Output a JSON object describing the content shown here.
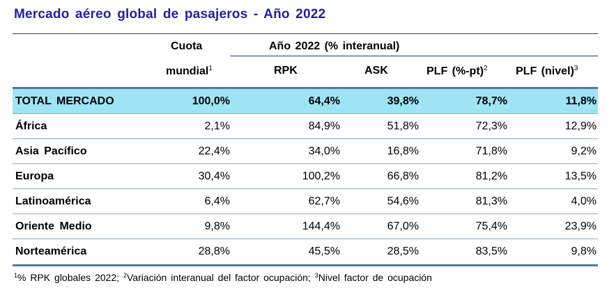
{
  "title": "Mercado aéreo global de pasajeros - Año 2022",
  "header": {
    "cuota_line1": "Cuota",
    "cuota_line2": "mundial",
    "cuota_sup": "1",
    "group_label": "Año 2022 (% interanual)",
    "rpk": "RPK",
    "ask": "ASK",
    "plf_pt": "PLF (%-pt)",
    "plf_pt_sup": "2",
    "plf_nivel": "PLF (nivel)",
    "plf_nivel_sup": "3"
  },
  "rows": [
    {
      "name": "TOTAL MERCADO",
      "cuota": "100,0%",
      "rpk": "64,4%",
      "ask": "39,8%",
      "plf_pt": "78,7%",
      "plf_nivel": "11,8%"
    },
    {
      "name": "África",
      "cuota": "2,1%",
      "rpk": "84,9%",
      "ask": "51,8%",
      "plf_pt": "72,3%",
      "plf_nivel": "12,9%"
    },
    {
      "name": "Asia Pacífico",
      "cuota": "22,4%",
      "rpk": "34,0%",
      "ask": "16,8%",
      "plf_pt": "71,8%",
      "plf_nivel": "9,2%"
    },
    {
      "name": "Europa",
      "cuota": "30,4%",
      "rpk": "100,2%",
      "ask": "66,8%",
      "plf_pt": "81,2%",
      "plf_nivel": "13,5%"
    },
    {
      "name": "Latinoamérica",
      "cuota": "6,4%",
      "rpk": "62,7%",
      "ask": "54,6%",
      "plf_pt": "81,3%",
      "plf_nivel": "4,0%"
    },
    {
      "name": "Oriente Medio",
      "cuota": "9,8%",
      "rpk": "144,4%",
      "ask": "67,0%",
      "plf_pt": "75,4%",
      "plf_nivel": "23,9%"
    },
    {
      "name": "Norteamérica",
      "cuota": "28,8%",
      "rpk": "45,5%",
      "ask": "28,5%",
      "plf_pt": "83,5%",
      "plf_nivel": "9,8%"
    }
  ],
  "footnote": {
    "sup1": "1",
    "text1": "% RPK globales 2022; ",
    "sup2": "2",
    "text2": "Variación interanual del factor ocupación; ",
    "sup3": "3",
    "text3": "Nivel factor de ocupación"
  },
  "colors": {
    "title": "#1f1fa8",
    "total_row_bg": "#9ee4f5",
    "rule": "#4a79a7"
  }
}
